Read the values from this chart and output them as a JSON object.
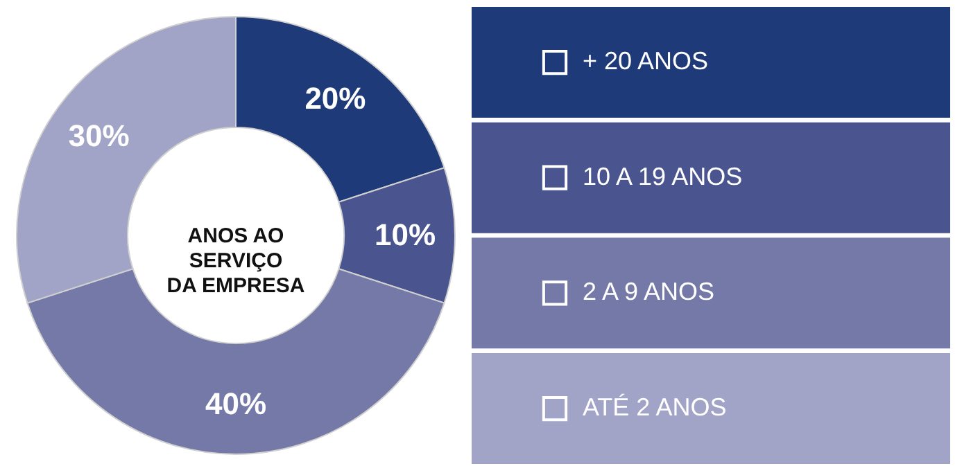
{
  "chart_data": {
    "type": "donut",
    "title": "ANOS AO\nSERVIÇO\nDA EMPRESA",
    "categories": [
      "+ 20 ANOS",
      "10 A 19 ANOS",
      "2 A 9 ANOS",
      "ATÉ 2 ANOS"
    ],
    "values": [
      20,
      10,
      40,
      30
    ],
    "colors": [
      "#1f3a78",
      "#4a5590",
      "#7479a8",
      "#a2a4c7"
    ],
    "value_labels": [
      "20%",
      "10%",
      "40%",
      "30%"
    ],
    "legend": "right"
  }
}
